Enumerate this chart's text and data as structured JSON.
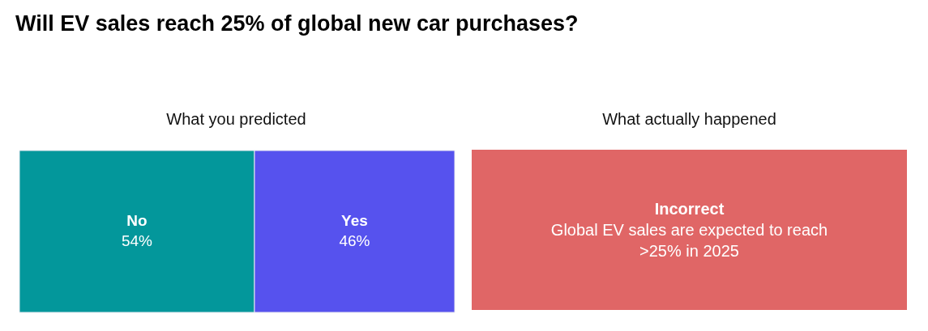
{
  "chart_data": [
    {
      "type": "bar",
      "title": "Will EV sales reach 25% of global new car purchases?",
      "subtitle": "What you predicted",
      "orientation": "horizontal",
      "stacked": true,
      "categories": [
        null
      ],
      "legend": false,
      "series": [
        {
          "name": "No",
          "color": "#03979b",
          "values": [
            54
          ],
          "value_labels": [
            "54%"
          ]
        },
        {
          "name": "Yes",
          "color": "#5652ee",
          "values": [
            46
          ],
          "value_labels": [
            "46%"
          ]
        }
      ]
    },
    {
      "type": "other",
      "title": "What actually happened",
      "annotations": [
        "Incorrect",
        "Global EV sales are expected to reach >25% in 2025"
      ]
    }
  ]
}
